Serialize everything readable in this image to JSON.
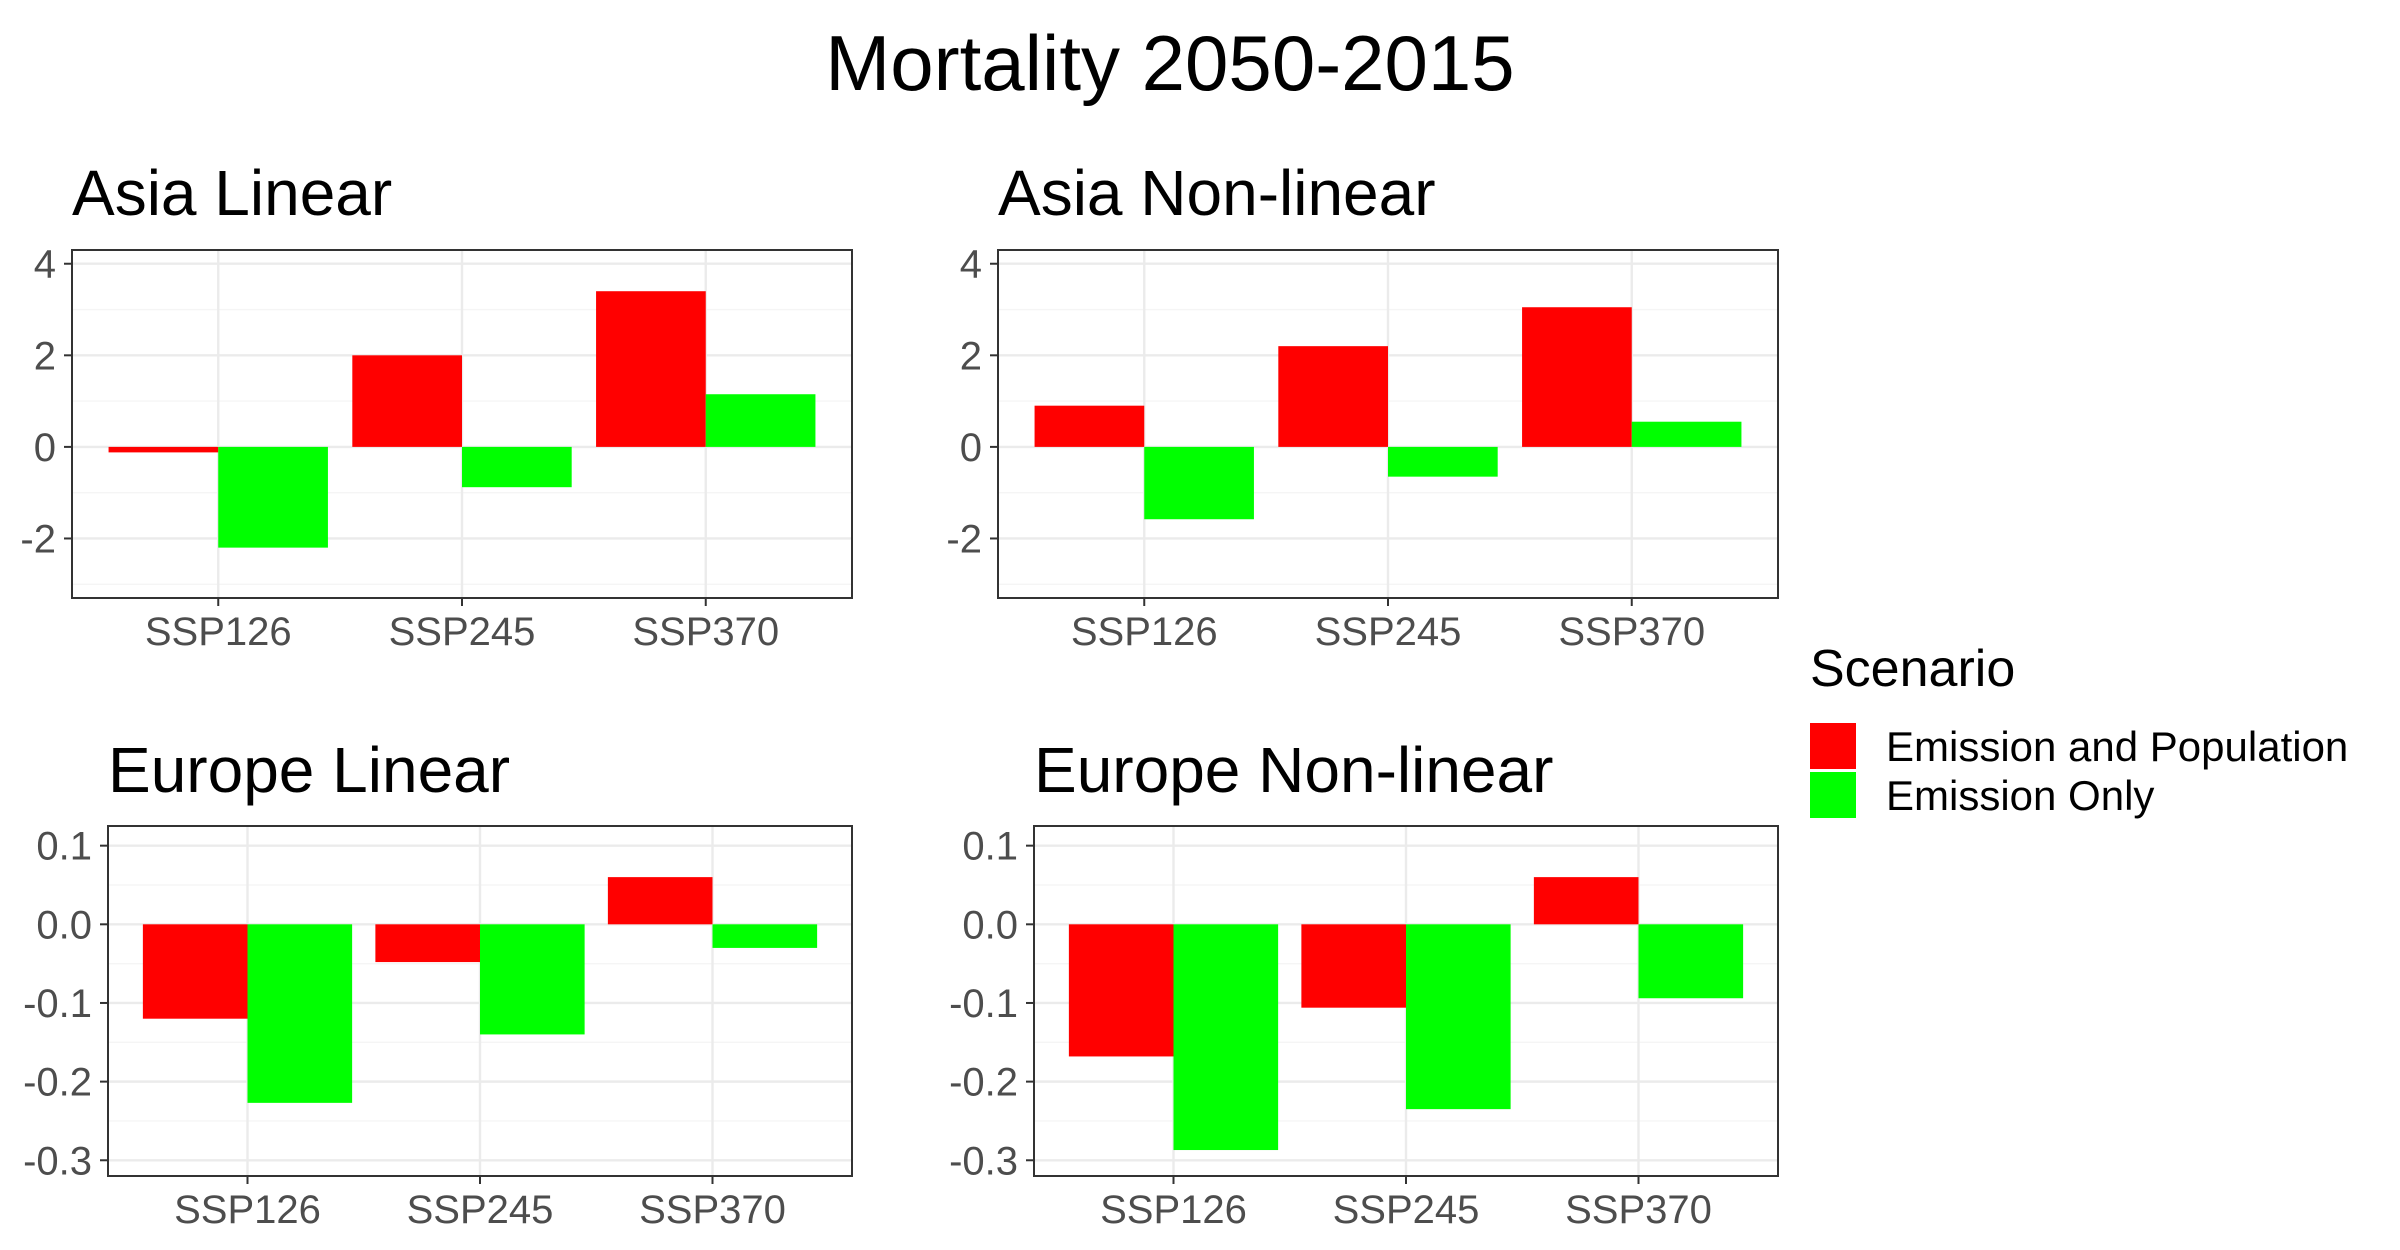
{
  "title": "Mortality 2050-2015",
  "legend": {
    "title": "Scenario",
    "items": [
      {
        "label": "Emission and Population",
        "color": "#ff0000"
      },
      {
        "label": "Emission Only",
        "color": "#00ff00"
      }
    ]
  },
  "chart_data": [
    {
      "type": "bar",
      "title": "Asia Linear",
      "categories": [
        "SSP126",
        "SSP245",
        "SSP370"
      ],
      "series": [
        {
          "name": "Emission and Population",
          "values": [
            -0.12,
            2.0,
            3.4
          ]
        },
        {
          "name": "Emission Only",
          "values": [
            -2.2,
            -0.88,
            1.15
          ]
        }
      ],
      "ylim": [
        -3.3,
        4.3
      ],
      "yticks": [
        -2,
        0,
        2,
        4
      ],
      "ytick_labels": [
        "-2",
        "0",
        "2",
        "4"
      ],
      "grid": true
    },
    {
      "type": "bar",
      "title": "Asia Non-linear",
      "categories": [
        "SSP126",
        "SSP245",
        "SSP370"
      ],
      "series": [
        {
          "name": "Emission and Population",
          "values": [
            0.9,
            2.2,
            3.05
          ]
        },
        {
          "name": "Emission Only",
          "values": [
            -1.58,
            -0.65,
            0.55
          ]
        }
      ],
      "ylim": [
        -3.3,
        4.3
      ],
      "yticks": [
        -2,
        0,
        2,
        4
      ],
      "ytick_labels": [
        "-2",
        "0",
        "2",
        "4"
      ],
      "grid": true
    },
    {
      "type": "bar",
      "title": "Europe Linear",
      "categories": [
        "SSP126",
        "SSP245",
        "SSP370"
      ],
      "series": [
        {
          "name": "Emission and Population",
          "values": [
            -0.12,
            -0.048,
            0.06
          ]
        },
        {
          "name": "Emission Only",
          "values": [
            -0.227,
            -0.14,
            -0.03
          ]
        }
      ],
      "ylim": [
        -0.32,
        0.125
      ],
      "yticks": [
        -0.3,
        -0.2,
        -0.1,
        0.0,
        0.1
      ],
      "ytick_labels": [
        "-0.3",
        "-0.2",
        "-0.1",
        "0.0",
        "0.1"
      ],
      "grid": true
    },
    {
      "type": "bar",
      "title": "Europe Non-linear",
      "categories": [
        "SSP126",
        "SSP245",
        "SSP370"
      ],
      "series": [
        {
          "name": "Emission and Population",
          "values": [
            -0.168,
            -0.106,
            0.06
          ]
        },
        {
          "name": "Emission Only",
          "values": [
            -0.287,
            -0.235,
            -0.094
          ]
        }
      ],
      "ylim": [
        -0.32,
        0.125
      ],
      "yticks": [
        -0.3,
        -0.2,
        -0.1,
        0.0,
        0.1
      ],
      "ytick_labels": [
        "-0.3",
        "-0.2",
        "-0.1",
        "0.0",
        "0.1"
      ],
      "grid": true
    }
  ]
}
